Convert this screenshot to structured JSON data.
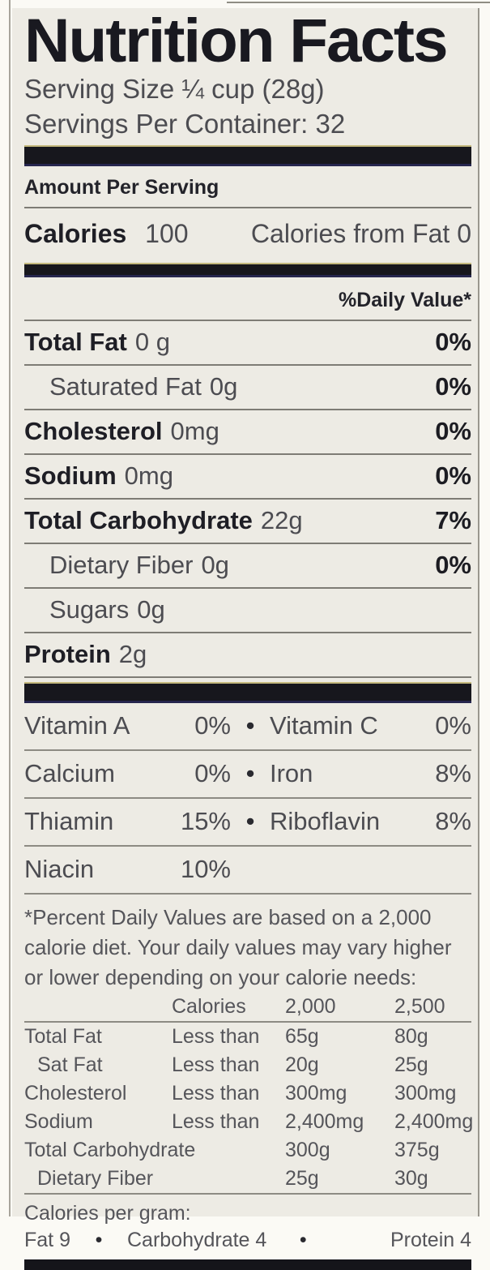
{
  "label": {
    "title": "Nutrition Facts",
    "serving_size": "Serving Size ¼ cup (28g)",
    "servings_per_container": "Servings Per Container: 32",
    "amount_per_serving": "Amount Per Serving",
    "calories": {
      "label": "Calories",
      "value": "100",
      "from_fat": "Calories from Fat 0"
    },
    "daily_value_header": "%Daily Value*",
    "nutrients": [
      {
        "name": "Total Fat",
        "amount": "0 g",
        "dv": "0%"
      },
      {
        "name": "Saturated Fat",
        "amount": "0g",
        "dv": "0%"
      },
      {
        "name": "Cholesterol",
        "amount": "0mg",
        "dv": "0%"
      },
      {
        "name": "Sodium",
        "amount": "0mg",
        "dv": "0%"
      },
      {
        "name": "Total Carbohydrate",
        "amount": "22g",
        "dv": "7%"
      },
      {
        "name": "Dietary Fiber",
        "amount": "0g",
        "dv": "0%"
      },
      {
        "name": "Sugars",
        "amount": "0g",
        "dv": ""
      },
      {
        "name": "Protein",
        "amount": "2g",
        "dv": ""
      }
    ],
    "bullet": "•",
    "vitamins": [
      {
        "left_name": "Vitamin A",
        "left_pct": "0%",
        "bullet": "•",
        "right_name": "Vitamin C",
        "right_pct": "0%"
      },
      {
        "left_name": "Calcium",
        "left_pct": "0%",
        "bullet": "•",
        "right_name": "Iron",
        "right_pct": "8%"
      },
      {
        "left_name": "Thiamin",
        "left_pct": "15%",
        "bullet": "•",
        "right_name": "Riboflavin",
        "right_pct": "8%"
      },
      {
        "left_name": "Niacin",
        "left_pct": "10%",
        "bullet": "",
        "right_name": "",
        "right_pct": ""
      }
    ],
    "footnote": "*Percent Daily Values are based on a 2,000 calorie diet. Your daily values may vary higher or lower depending on your calorie needs:",
    "dv_table": {
      "header": {
        "calories": "Calories",
        "v2000": "2,000",
        "v2500": "2,500"
      },
      "rows": [
        {
          "name": "Total Fat",
          "qualifier": "Less than",
          "v2000": "65g",
          "v2500": "80g"
        },
        {
          "name": "Sat Fat",
          "qualifier": "Less than",
          "v2000": "20g",
          "v2500": "25g"
        },
        {
          "name": "Cholesterol",
          "qualifier": "Less than",
          "v2000": "300mg",
          "v2500": "300mg"
        },
        {
          "name": "Sodium",
          "qualifier": "Less than",
          "v2000": "2,400mg",
          "v2500": "2,400mg"
        },
        {
          "name": "Total Carbohydrate",
          "qualifier": "",
          "v2000": "300g",
          "v2500": "375g"
        },
        {
          "name": "Dietary Fiber",
          "qualifier": "",
          "v2000": "25g",
          "v2500": "30g"
        }
      ]
    },
    "calories_per_gram": {
      "title": "Calories per gram:",
      "fat": "Fat 9",
      "carbohydrate": "Carbohydrate 4",
      "protein": "Protein 4"
    },
    "colors": {
      "panel_background": "#edebe4",
      "bar_black": "#17171d",
      "text_dark": "#1e1e25",
      "text_gray": "#4c4c51"
    }
  }
}
